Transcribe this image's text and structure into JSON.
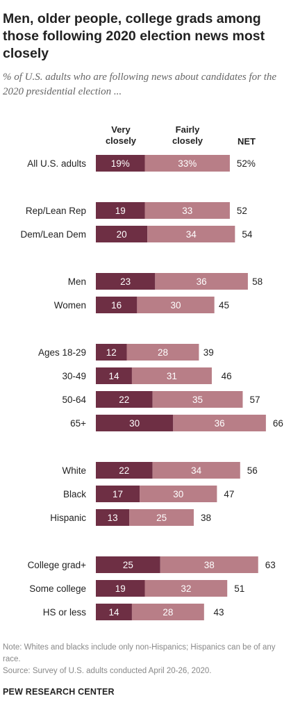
{
  "chart_data": {
    "type": "bar",
    "stacked": true,
    "orientation": "horizontal",
    "title": "Men, older people, college grads among those following 2020 election news most closely",
    "subtitle": "% of U.S. adults who are following news about candidates for the 2020 presidential election ...",
    "column_headers": {
      "very": "Very\nclosely",
      "fairly": "Fairly\nclosely",
      "net": "NET"
    },
    "categories": [
      "All U.S. adults",
      "Rep/Lean Rep",
      "Dem/Lean Dem",
      "Men",
      "Women",
      "Ages 18-29",
      "30-49",
      "50-64",
      "65+",
      "White",
      "Black",
      "Hispanic",
      "College grad+",
      "Some college",
      "HS or less"
    ],
    "groups": [
      [
        0
      ],
      [
        1,
        2
      ],
      [
        3,
        4
      ],
      [
        5,
        6,
        7,
        8
      ],
      [
        9,
        10,
        11
      ],
      [
        12,
        13,
        14
      ]
    ],
    "series": [
      {
        "name": "Very closely",
        "color": "#6e2f44",
        "values": [
          19,
          19,
          20,
          23,
          16,
          12,
          14,
          22,
          30,
          22,
          17,
          13,
          25,
          19,
          14
        ],
        "labels": [
          "19%",
          "19",
          "20",
          "23",
          "16",
          "12",
          "14",
          "22",
          "30",
          "22",
          "17",
          "13",
          "25",
          "19",
          "14"
        ]
      },
      {
        "name": "Fairly closely",
        "color": "#b87e87",
        "values": [
          33,
          33,
          34,
          36,
          30,
          28,
          31,
          35,
          36,
          34,
          30,
          25,
          38,
          32,
          28
        ],
        "labels": [
          "33%",
          "33",
          "34",
          "36",
          "30",
          "28",
          "31",
          "35",
          "36",
          "34",
          "30",
          "25",
          "38",
          "32",
          "28"
        ]
      }
    ],
    "net": {
      "name": "NET",
      "values": [
        52,
        52,
        54,
        58,
        45,
        39,
        46,
        57,
        66,
        56,
        47,
        38,
        63,
        51,
        43
      ],
      "labels": [
        "52%",
        "52",
        "54",
        "58",
        "45",
        "39",
        "46",
        "57",
        "66",
        "56",
        "47",
        "38",
        "63",
        "51",
        "43"
      ]
    },
    "xlim": [
      0,
      66
    ]
  },
  "footer": {
    "note": "Note: Whites and blacks include only non-Hispanics; Hispanics can be of any race.",
    "source": "Source: Survey of U.S. adults conducted April 20-26, 2020.",
    "brand": "PEW RESEARCH CENTER"
  }
}
